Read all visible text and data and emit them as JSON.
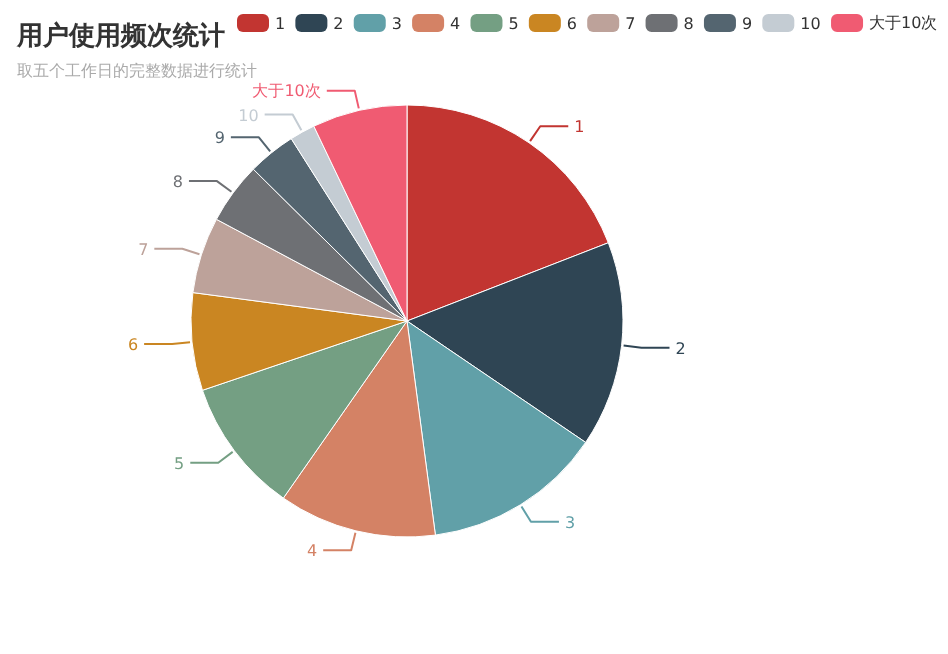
{
  "chart_data": {
    "type": "pie",
    "title": "用户使用频次统计",
    "subtitle": "取五个工作日的完整数据进行统计",
    "categories": [
      "1",
      "2",
      "3",
      "4",
      "5",
      "6",
      "7",
      "8",
      "9",
      "10",
      "大于10次"
    ],
    "values": [
      19.1,
      15.4,
      13.4,
      11.8,
      10.1,
      7.3,
      5.7,
      4.6,
      3.6,
      1.9,
      7.1
    ],
    "colors": [
      "#c23531",
      "#2f4554",
      "#61a0a8",
      "#d48265",
      "#749f83",
      "#ca8622",
      "#bda29a",
      "#6e7074",
      "#546570",
      "#c4ccd3",
      "#f05b72"
    ],
    "legend": "top"
  }
}
